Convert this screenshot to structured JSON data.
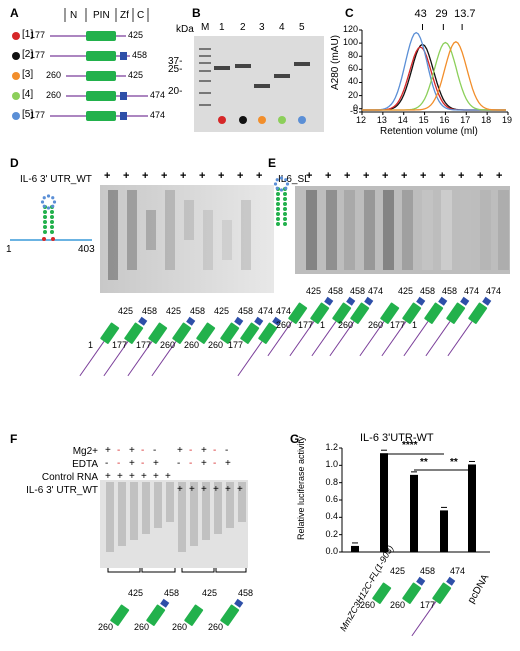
{
  "panels": {
    "a": "A",
    "b": "B",
    "c": "C",
    "d": "D",
    "e": "E",
    "f": "F",
    "g": "G"
  },
  "panelA": {
    "header": {
      "n": "N",
      "pin": "PIN",
      "zf": "Zf",
      "c": "C"
    },
    "constructs": [
      {
        "idx": "[1]",
        "start": "177",
        "end": "425",
        "color": "#d62728"
      },
      {
        "idx": "[2]",
        "start": "177",
        "end": "458",
        "color": "#111111"
      },
      {
        "idx": "[3]",
        "start": "260",
        "end": "425",
        "color": "#f28e2b"
      },
      {
        "idx": "[4]",
        "start": "260",
        "end": "474",
        "color": "#8ccf5a"
      },
      {
        "idx": "[5]",
        "start": "177",
        "end": "474",
        "color": "#5b8fd6"
      }
    ]
  },
  "panelB": {
    "unit": "kDa",
    "lanes": [
      "M",
      "1",
      "2",
      "3",
      "4",
      "5"
    ],
    "markers": [
      "37-",
      "25-",
      "20-"
    ]
  },
  "panelC": {
    "peaks": [
      "43",
      "29",
      "13.7"
    ],
    "ylabel": "A280 (mAU)",
    "xlabel": "Retention volume (ml)",
    "yticks": [
      "120",
      "100",
      "80",
      "60",
      "40",
      "20",
      "0",
      "-5"
    ],
    "xticks": [
      "12",
      "13",
      "14",
      "15",
      "16",
      "17",
      "18",
      "19"
    ]
  },
  "panelD": {
    "title": "IL-6 3' UTR_WT",
    "rna_start": "1",
    "rna_end": "403",
    "labels": [
      "425",
      "458",
      "425",
      "458",
      "425",
      "458",
      "474",
      "474"
    ],
    "starts": [
      "1",
      "177",
      "177",
      "260",
      "260",
      "260",
      "177"
    ]
  },
  "panelE": {
    "title": "IL6_SL",
    "labels": [
      "425",
      "458",
      "458",
      "474",
      "425",
      "458",
      "458",
      "474",
      "474"
    ],
    "starts": [
      "260",
      "177",
      "1",
      "260",
      "260",
      "177",
      "1"
    ]
  },
  "panelF": {
    "rows": [
      "Mg2+",
      "EDTA",
      "Control RNA",
      "IL-6 3' UTR_WT"
    ],
    "labels": [
      "425",
      "458",
      "425",
      "458"
    ],
    "starts": [
      "260",
      "260",
      "260",
      "260"
    ]
  },
  "panelG": {
    "title": "IL-6 3'UTR-WT",
    "ylabel": "Relative luciferase activity",
    "yticks": [
      "1.2",
      "1.0",
      "0.8",
      "0.6",
      "0.4",
      "0.2",
      "0.0"
    ],
    "sig": [
      "****",
      "**",
      "**"
    ],
    "xlabels": [
      "MmZC3H12C-FL(1-903)",
      "425",
      "458",
      "474",
      "pcDNA"
    ],
    "starts": [
      "260",
      "260",
      "177"
    ]
  },
  "chart_data": {
    "type": "bar",
    "title": "IL-6 3'UTR-WT",
    "ylabel": "Relative luciferase activity",
    "categories": [
      "MmZC3H12C-FL(1-903)",
      "260-425",
      "260-458",
      "177-474",
      "pcDNA"
    ],
    "values": [
      0.07,
      1.14,
      0.89,
      0.48,
      1.01
    ],
    "ylim": [
      0,
      1.2
    ]
  }
}
